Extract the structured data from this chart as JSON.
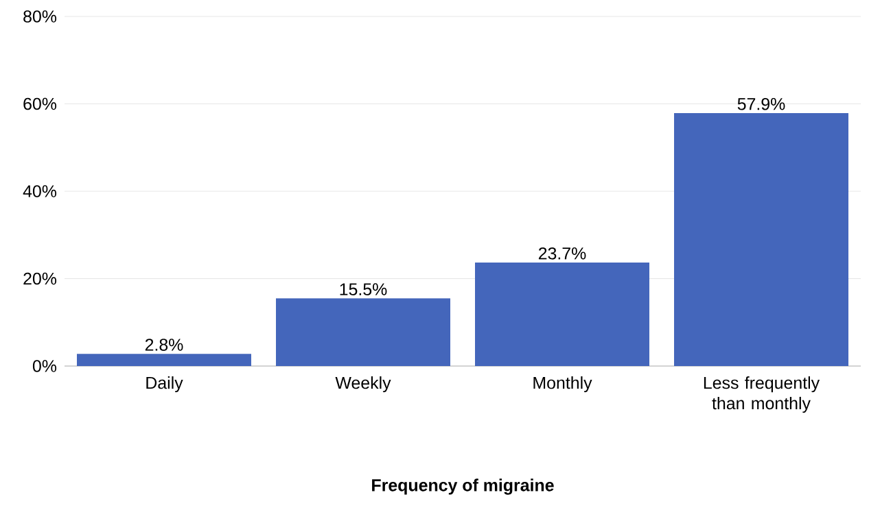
{
  "chart_data": {
    "type": "bar",
    "xlabel": "Frequency of migraine",
    "categories": [
      "Daily",
      "Weekly",
      "Monthly",
      "Less frequently than monthly"
    ],
    "values": [
      2.8,
      15.5,
      23.7,
      57.9
    ],
    "value_labels": [
      "2.8%",
      "15.5%",
      "23.7%",
      "57.9%"
    ],
    "color": "#4466bb",
    "ylim": [
      0,
      80
    ],
    "yticks": [
      {
        "value": 0,
        "label": "0%"
      },
      {
        "value": 20,
        "label": "20%"
      },
      {
        "value": 40,
        "label": "40%"
      },
      {
        "value": 60,
        "label": "60%"
      },
      {
        "value": 80,
        "label": "80%"
      }
    ],
    "grid": "y"
  }
}
